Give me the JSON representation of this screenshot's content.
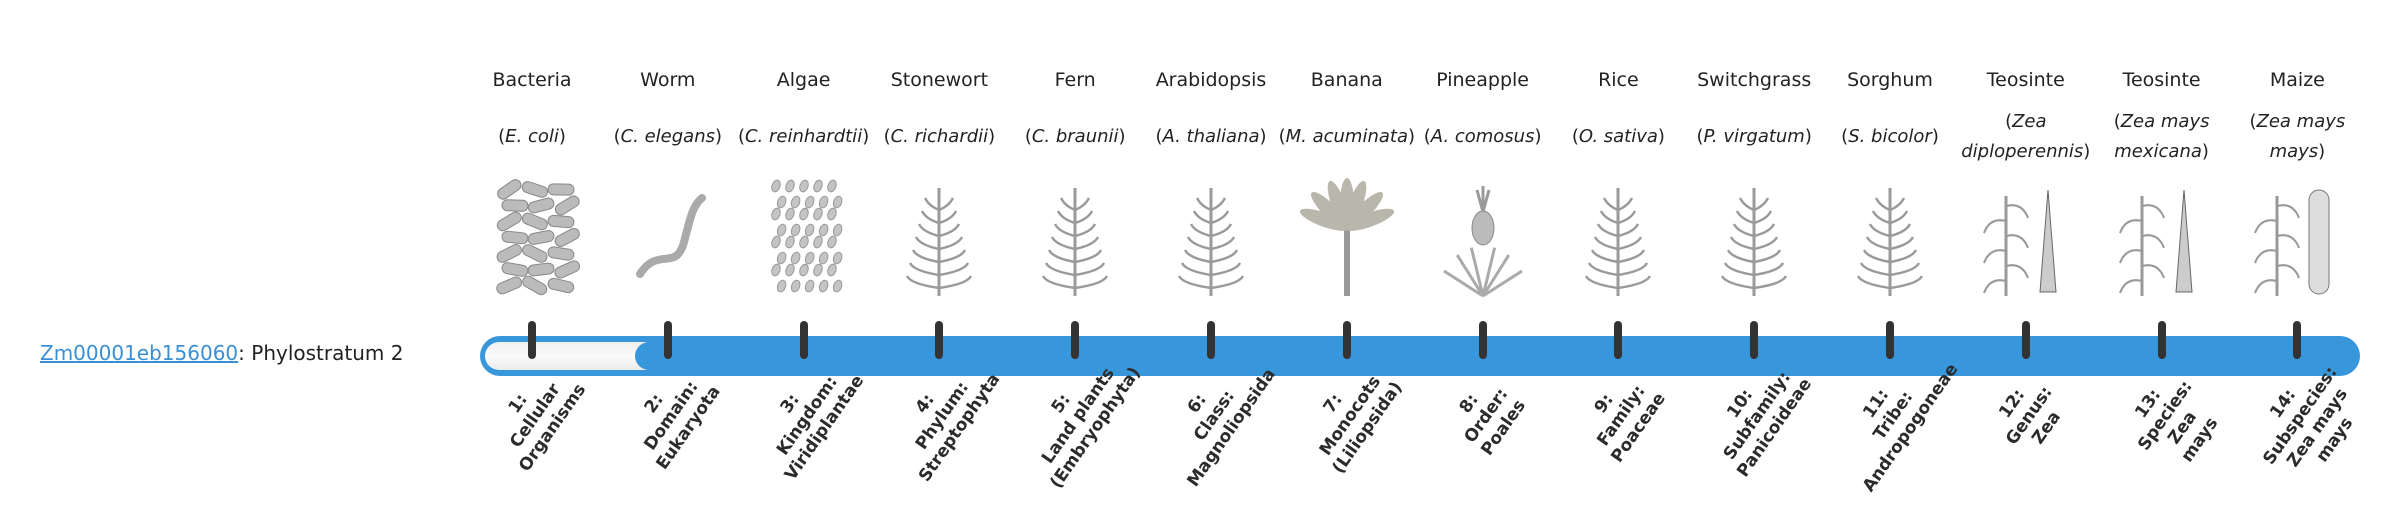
{
  "gene": {
    "id": "Zm00001eb156060",
    "suffix": ": Phylostratum 2"
  },
  "progress": {
    "current_stratum": 2,
    "total_strata": 14
  },
  "colors": {
    "bar": "#3897db",
    "link": "#3a8fd4",
    "tick": "#333333",
    "label": "#2b2b2b"
  },
  "organisms": [
    {
      "common": "Bacteria",
      "sci": "E. coli",
      "icon": "bacteria-icon"
    },
    {
      "common": "Worm",
      "sci": "C. elegans",
      "icon": "worm-icon"
    },
    {
      "common": "Algae",
      "sci": "C. reinhardtii",
      "icon": "algae-icon"
    },
    {
      "common": "Stonewort",
      "sci": "C. richardii",
      "icon": "stonewort-icon"
    },
    {
      "common": "Fern",
      "sci": "C. braunii",
      "icon": "fern-icon"
    },
    {
      "common": "Arabidopsis",
      "sci": "A. thaliana",
      "icon": "arabidopsis-icon"
    },
    {
      "common": "Banana",
      "sci": "M. acuminata",
      "icon": "banana-icon"
    },
    {
      "common": "Pineapple",
      "sci": "A. comosus",
      "icon": "pineapple-icon"
    },
    {
      "common": "Rice",
      "sci": "O. sativa",
      "icon": "rice-icon"
    },
    {
      "common": "Switchgrass",
      "sci": "P. virgatum",
      "icon": "switchgrass-icon"
    },
    {
      "common": "Sorghum",
      "sci": "S. bicolor",
      "icon": "sorghum-icon"
    },
    {
      "common": "Teosinte",
      "sci": "Zea diploperennis",
      "icon": "teosinte-icon"
    },
    {
      "common": "Teosinte",
      "sci": "Zea mays mexicana",
      "icon": "teosinte-icon"
    },
    {
      "common": "Maize",
      "sci": "Zea mays mays",
      "icon": "maize-icon"
    }
  ],
  "strata": [
    {
      "lines": [
        "1:",
        "Cellular",
        "Organisms"
      ]
    },
    {
      "lines": [
        "2:",
        "Domain:",
        "Eukaryota"
      ]
    },
    {
      "lines": [
        "3:",
        "Kingdom:",
        "Viridiplantae"
      ]
    },
    {
      "lines": [
        "4:",
        "Phylum:",
        "Streptophyta"
      ]
    },
    {
      "lines": [
        "5:",
        "Land plants",
        "(Embryophyta)"
      ]
    },
    {
      "lines": [
        "6:",
        "Class:",
        "Magnoliopsida"
      ]
    },
    {
      "lines": [
        "7:",
        "Monocots",
        "(Liliopsida)"
      ]
    },
    {
      "lines": [
        "8:",
        "Order:",
        "Poales"
      ]
    },
    {
      "lines": [
        "9:",
        "Family:",
        "Poaceae"
      ]
    },
    {
      "lines": [
        "10:",
        "Subfamily:",
        "Panicoideae"
      ]
    },
    {
      "lines": [
        "11:",
        "Tribe:",
        "Andropogoneae"
      ]
    },
    {
      "lines": [
        "12:",
        "Genus:",
        "Zea"
      ]
    },
    {
      "lines": [
        "13:",
        "Species:",
        "Zea",
        "mays"
      ]
    },
    {
      "lines": [
        "14:",
        "Subspecies:",
        "Zea mays",
        "mays"
      ]
    }
  ]
}
